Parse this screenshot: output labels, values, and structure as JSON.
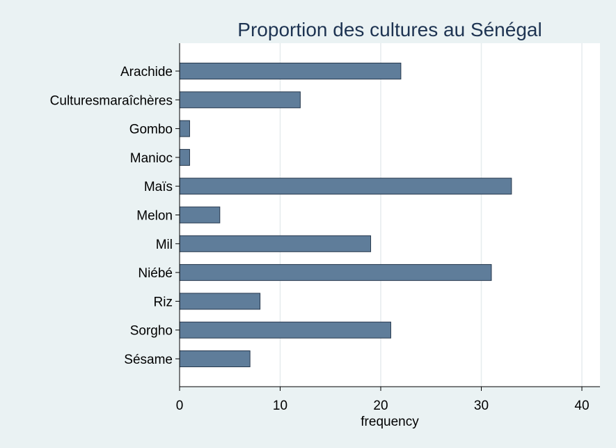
{
  "chart_data": {
    "type": "bar",
    "orientation": "horizontal",
    "title": "Proportion des cultures au Sénégal",
    "xlabel": "frequency",
    "ylabel": "",
    "categories": [
      "Arachide",
      "Culturesmaraîchères",
      "Gombo",
      "Manioc",
      "Maïs",
      "Melon",
      "Mil",
      "Niébé",
      "Riz",
      "Sorgho",
      "Sésame"
    ],
    "values": [
      22,
      12,
      1,
      1,
      33,
      4,
      19,
      31,
      8,
      21,
      7
    ],
    "xlim": [
      0,
      40
    ],
    "xticks": [
      0,
      10,
      20,
      30,
      40
    ],
    "grid": true,
    "bar_color": "#5f7d9a",
    "bar_edge_color": "#26384d",
    "plot_background": "#ffffff",
    "page_background": "#eaf2f3",
    "title_color": "#1e3452"
  }
}
